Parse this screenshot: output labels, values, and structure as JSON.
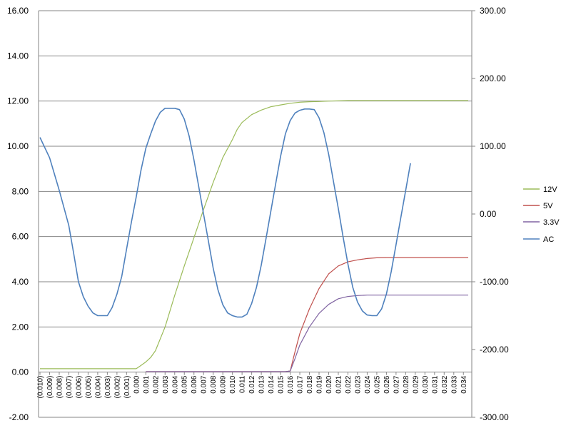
{
  "chart_data": {
    "type": "line",
    "title": "",
    "xlabel": "",
    "ylabel": "",
    "grid": true,
    "legend_position": "right",
    "x_range": [
      -0.01,
      0.0345
    ],
    "x_tick_labels": [
      "(0.010)",
      "(0.009)",
      "(0.008)",
      "(0.007)",
      "(0.006)",
      "(0.005)",
      "(0.004)",
      "(0.003)",
      "(0.002)",
      "(0.001)",
      "0.000",
      "0.001",
      "0.002",
      "0.003",
      "0.004",
      "0.005",
      "0.006",
      "0.007",
      "0.008",
      "0.009",
      "0.010",
      "0.011",
      "0.012",
      "0.013",
      "0.014",
      "0.015",
      "0.016",
      "0.017",
      "0.018",
      "0.019",
      "0.020",
      "0.021",
      "0.022",
      "0.023",
      "0.024",
      "0.025",
      "0.026",
      "0.027",
      "0.028",
      "0.029",
      "0.030",
      "0.031",
      "0.032",
      "0.033",
      "0.034"
    ],
    "y_left": {
      "range": [
        -2,
        16
      ],
      "tick_labels": [
        "-2.00",
        "0.00",
        "2.00",
        "4.00",
        "6.00",
        "8.00",
        "10.00",
        "12.00",
        "14.00",
        "16.00"
      ]
    },
    "y_right": {
      "range": [
        -300,
        300
      ],
      "tick_labels": [
        "-300.00",
        "-200.00",
        "-100.00",
        "0.00",
        "100.00",
        "200.00",
        "300.00"
      ]
    },
    "series": [
      {
        "name": "12V",
        "color": "#9bbb59",
        "axis": "left",
        "points": [
          [
            -0.01,
            0.15
          ],
          [
            0.0,
            0.15
          ],
          [
            0.0005,
            0.3
          ],
          [
            0.001,
            0.45
          ],
          [
            0.0015,
            0.65
          ],
          [
            0.002,
            0.95
          ],
          [
            0.003,
            2.0
          ],
          [
            0.004,
            3.4
          ],
          [
            0.005,
            4.7
          ],
          [
            0.006,
            5.95
          ],
          [
            0.007,
            7.2
          ],
          [
            0.008,
            8.4
          ],
          [
            0.009,
            9.5
          ],
          [
            0.01,
            10.3
          ],
          [
            0.0105,
            10.75
          ],
          [
            0.011,
            11.05
          ],
          [
            0.012,
            11.4
          ],
          [
            0.013,
            11.6
          ],
          [
            0.014,
            11.75
          ],
          [
            0.015,
            11.83
          ],
          [
            0.016,
            11.9
          ],
          [
            0.017,
            11.95
          ],
          [
            0.018,
            11.97
          ],
          [
            0.019,
            11.98
          ],
          [
            0.02,
            12.0
          ],
          [
            0.022,
            12.02
          ],
          [
            0.0345,
            12.02
          ]
        ]
      },
      {
        "name": "5V",
        "color": "#c0504d",
        "axis": "left",
        "points": [
          [
            0.001,
            0.02
          ],
          [
            0.0155,
            0.02
          ],
          [
            0.016,
            0.05
          ],
          [
            0.0165,
            0.9
          ],
          [
            0.017,
            1.7
          ],
          [
            0.018,
            2.8
          ],
          [
            0.019,
            3.7
          ],
          [
            0.02,
            4.35
          ],
          [
            0.021,
            4.7
          ],
          [
            0.022,
            4.88
          ],
          [
            0.023,
            4.97
          ],
          [
            0.024,
            5.03
          ],
          [
            0.025,
            5.06
          ],
          [
            0.026,
            5.07
          ],
          [
            0.028,
            5.07
          ],
          [
            0.0345,
            5.07
          ]
        ]
      },
      {
        "name": "3.3V",
        "color": "#8064a2",
        "axis": "left",
        "points": [
          [
            0.001,
            0.02
          ],
          [
            0.0155,
            0.02
          ],
          [
            0.016,
            0.05
          ],
          [
            0.0165,
            0.6
          ],
          [
            0.017,
            1.2
          ],
          [
            0.018,
            2.0
          ],
          [
            0.019,
            2.6
          ],
          [
            0.02,
            3.0
          ],
          [
            0.021,
            3.25
          ],
          [
            0.022,
            3.35
          ],
          [
            0.023,
            3.39
          ],
          [
            0.024,
            3.41
          ],
          [
            0.026,
            3.41
          ],
          [
            0.0345,
            3.41
          ]
        ]
      },
      {
        "name": "AC",
        "color": "#4f81bd",
        "axis": "right",
        "points": [
          [
            -0.01,
            113
          ],
          [
            -0.009,
            83
          ],
          [
            -0.008,
            35
          ],
          [
            -0.007,
            -17
          ],
          [
            -0.0065,
            -58
          ],
          [
            -0.006,
            -100
          ],
          [
            -0.0055,
            -122
          ],
          [
            -0.005,
            -136
          ],
          [
            -0.0045,
            -146
          ],
          [
            -0.004,
            -150
          ],
          [
            -0.003,
            -150
          ],
          [
            -0.0025,
            -138
          ],
          [
            -0.002,
            -118
          ],
          [
            -0.0015,
            -92
          ],
          [
            -0.001,
            -52
          ],
          [
            -0.0005,
            -12
          ],
          [
            0.0,
            25
          ],
          [
            0.0005,
            65
          ],
          [
            0.001,
            97
          ],
          [
            0.0015,
            118
          ],
          [
            0.002,
            137
          ],
          [
            0.0025,
            150
          ],
          [
            0.003,
            156
          ],
          [
            0.0035,
            156
          ],
          [
            0.004,
            156
          ],
          [
            0.0045,
            154
          ],
          [
            0.005,
            140
          ],
          [
            0.0055,
            115
          ],
          [
            0.006,
            80
          ],
          [
            0.0065,
            40
          ],
          [
            0.007,
            0
          ],
          [
            0.0075,
            -40
          ],
          [
            0.008,
            -80
          ],
          [
            0.0085,
            -112
          ],
          [
            0.009,
            -134
          ],
          [
            0.0095,
            -146
          ],
          [
            0.01,
            -150
          ],
          [
            0.0105,
            -152
          ],
          [
            0.011,
            -152
          ],
          [
            0.0115,
            -148
          ],
          [
            0.012,
            -132
          ],
          [
            0.0125,
            -108
          ],
          [
            0.013,
            -75
          ],
          [
            0.0135,
            -35
          ],
          [
            0.014,
            5
          ],
          [
            0.0145,
            45
          ],
          [
            0.015,
            85
          ],
          [
            0.0155,
            118
          ],
          [
            0.016,
            138
          ],
          [
            0.0165,
            149
          ],
          [
            0.017,
            153
          ],
          [
            0.0175,
            155
          ],
          [
            0.018,
            155
          ],
          [
            0.0185,
            154
          ],
          [
            0.019,
            142
          ],
          [
            0.0195,
            120
          ],
          [
            0.02,
            88
          ],
          [
            0.0205,
            48
          ],
          [
            0.021,
            8
          ],
          [
            0.0215,
            -34
          ],
          [
            0.022,
            -74
          ],
          [
            0.0225,
            -108
          ],
          [
            0.023,
            -130
          ],
          [
            0.0235,
            -143
          ],
          [
            0.024,
            -149
          ],
          [
            0.0245,
            -150
          ],
          [
            0.025,
            -150
          ],
          [
            0.0255,
            -140
          ],
          [
            0.026,
            -118
          ],
          [
            0.0265,
            -85
          ],
          [
            0.027,
            -45
          ],
          [
            0.0275,
            -5
          ],
          [
            0.028,
            35
          ],
          [
            0.0285,
            75
          ]
        ]
      }
    ]
  }
}
